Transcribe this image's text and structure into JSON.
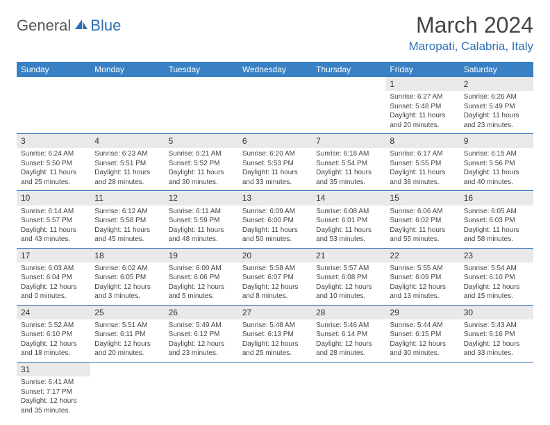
{
  "logo": {
    "part1": "General",
    "part2": "Blue"
  },
  "title": "March 2024",
  "location": "Maropati, Calabria, Italy",
  "colors": {
    "header_bg": "#3a80c4",
    "accent": "#2f6fb4",
    "daynum_bg": "#e9e9e9",
    "text": "#444444"
  },
  "weekdays": [
    "Sunday",
    "Monday",
    "Tuesday",
    "Wednesday",
    "Thursday",
    "Friday",
    "Saturday"
  ],
  "weeks": [
    [
      null,
      null,
      null,
      null,
      null,
      {
        "n": "1",
        "sr": "Sunrise: 6:27 AM",
        "ss": "Sunset: 5:48 PM",
        "dl": "Daylight: 11 hours and 20 minutes."
      },
      {
        "n": "2",
        "sr": "Sunrise: 6:26 AM",
        "ss": "Sunset: 5:49 PM",
        "dl": "Daylight: 11 hours and 23 minutes."
      }
    ],
    [
      {
        "n": "3",
        "sr": "Sunrise: 6:24 AM",
        "ss": "Sunset: 5:50 PM",
        "dl": "Daylight: 11 hours and 25 minutes."
      },
      {
        "n": "4",
        "sr": "Sunrise: 6:23 AM",
        "ss": "Sunset: 5:51 PM",
        "dl": "Daylight: 11 hours and 28 minutes."
      },
      {
        "n": "5",
        "sr": "Sunrise: 6:21 AM",
        "ss": "Sunset: 5:52 PM",
        "dl": "Daylight: 11 hours and 30 minutes."
      },
      {
        "n": "6",
        "sr": "Sunrise: 6:20 AM",
        "ss": "Sunset: 5:53 PM",
        "dl": "Daylight: 11 hours and 33 minutes."
      },
      {
        "n": "7",
        "sr": "Sunrise: 6:18 AM",
        "ss": "Sunset: 5:54 PM",
        "dl": "Daylight: 11 hours and 35 minutes."
      },
      {
        "n": "8",
        "sr": "Sunrise: 6:17 AM",
        "ss": "Sunset: 5:55 PM",
        "dl": "Daylight: 11 hours and 38 minutes."
      },
      {
        "n": "9",
        "sr": "Sunrise: 6:15 AM",
        "ss": "Sunset: 5:56 PM",
        "dl": "Daylight: 11 hours and 40 minutes."
      }
    ],
    [
      {
        "n": "10",
        "sr": "Sunrise: 6:14 AM",
        "ss": "Sunset: 5:57 PM",
        "dl": "Daylight: 11 hours and 43 minutes."
      },
      {
        "n": "11",
        "sr": "Sunrise: 6:12 AM",
        "ss": "Sunset: 5:58 PM",
        "dl": "Daylight: 11 hours and 45 minutes."
      },
      {
        "n": "12",
        "sr": "Sunrise: 6:11 AM",
        "ss": "Sunset: 5:59 PM",
        "dl": "Daylight: 11 hours and 48 minutes."
      },
      {
        "n": "13",
        "sr": "Sunrise: 6:09 AM",
        "ss": "Sunset: 6:00 PM",
        "dl": "Daylight: 11 hours and 50 minutes."
      },
      {
        "n": "14",
        "sr": "Sunrise: 6:08 AM",
        "ss": "Sunset: 6:01 PM",
        "dl": "Daylight: 11 hours and 53 minutes."
      },
      {
        "n": "15",
        "sr": "Sunrise: 6:06 AM",
        "ss": "Sunset: 6:02 PM",
        "dl": "Daylight: 11 hours and 55 minutes."
      },
      {
        "n": "16",
        "sr": "Sunrise: 6:05 AM",
        "ss": "Sunset: 6:03 PM",
        "dl": "Daylight: 11 hours and 58 minutes."
      }
    ],
    [
      {
        "n": "17",
        "sr": "Sunrise: 6:03 AM",
        "ss": "Sunset: 6:04 PM",
        "dl": "Daylight: 12 hours and 0 minutes."
      },
      {
        "n": "18",
        "sr": "Sunrise: 6:02 AM",
        "ss": "Sunset: 6:05 PM",
        "dl": "Daylight: 12 hours and 3 minutes."
      },
      {
        "n": "19",
        "sr": "Sunrise: 6:00 AM",
        "ss": "Sunset: 6:06 PM",
        "dl": "Daylight: 12 hours and 5 minutes."
      },
      {
        "n": "20",
        "sr": "Sunrise: 5:58 AM",
        "ss": "Sunset: 6:07 PM",
        "dl": "Daylight: 12 hours and 8 minutes."
      },
      {
        "n": "21",
        "sr": "Sunrise: 5:57 AM",
        "ss": "Sunset: 6:08 PM",
        "dl": "Daylight: 12 hours and 10 minutes."
      },
      {
        "n": "22",
        "sr": "Sunrise: 5:55 AM",
        "ss": "Sunset: 6:09 PM",
        "dl": "Daylight: 12 hours and 13 minutes."
      },
      {
        "n": "23",
        "sr": "Sunrise: 5:54 AM",
        "ss": "Sunset: 6:10 PM",
        "dl": "Daylight: 12 hours and 15 minutes."
      }
    ],
    [
      {
        "n": "24",
        "sr": "Sunrise: 5:52 AM",
        "ss": "Sunset: 6:10 PM",
        "dl": "Daylight: 12 hours and 18 minutes."
      },
      {
        "n": "25",
        "sr": "Sunrise: 5:51 AM",
        "ss": "Sunset: 6:11 PM",
        "dl": "Daylight: 12 hours and 20 minutes."
      },
      {
        "n": "26",
        "sr": "Sunrise: 5:49 AM",
        "ss": "Sunset: 6:12 PM",
        "dl": "Daylight: 12 hours and 23 minutes."
      },
      {
        "n": "27",
        "sr": "Sunrise: 5:48 AM",
        "ss": "Sunset: 6:13 PM",
        "dl": "Daylight: 12 hours and 25 minutes."
      },
      {
        "n": "28",
        "sr": "Sunrise: 5:46 AM",
        "ss": "Sunset: 6:14 PM",
        "dl": "Daylight: 12 hours and 28 minutes."
      },
      {
        "n": "29",
        "sr": "Sunrise: 5:44 AM",
        "ss": "Sunset: 6:15 PM",
        "dl": "Daylight: 12 hours and 30 minutes."
      },
      {
        "n": "30",
        "sr": "Sunrise: 5:43 AM",
        "ss": "Sunset: 6:16 PM",
        "dl": "Daylight: 12 hours and 33 minutes."
      }
    ],
    [
      {
        "n": "31",
        "sr": "Sunrise: 6:41 AM",
        "ss": "Sunset: 7:17 PM",
        "dl": "Daylight: 12 hours and 35 minutes."
      },
      null,
      null,
      null,
      null,
      null,
      null
    ]
  ]
}
